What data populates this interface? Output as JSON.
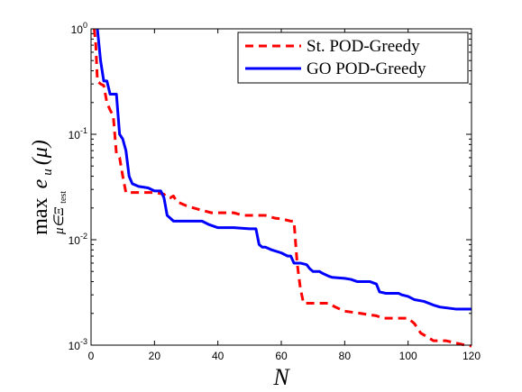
{
  "chart_data": {
    "type": "line",
    "title": "",
    "xlabel": "N",
    "ylabel": {
      "op": "max",
      "subscript": "μ∈Ξ",
      "subscript_tail": "test",
      "expr_main": "e",
      "expr_sub": "u",
      "expr_arg": "(μ)"
    },
    "xlim": [
      0,
      120
    ],
    "ylim": [
      0.001,
      1
    ],
    "yscale": "log",
    "grid": false,
    "legend_position": "top-right",
    "x_ticks": [
      0,
      20,
      40,
      60,
      80,
      100,
      120
    ],
    "x_tick_labels": [
      "0",
      "20",
      "40",
      "60",
      "80",
      "100",
      "120"
    ],
    "y_ticks": [
      0.001,
      0.01,
      0.1,
      1
    ],
    "y_tick_labels": [
      {
        "base": "10",
        "exp": "-3"
      },
      {
        "base": "10",
        "exp": "-2"
      },
      {
        "base": "10",
        "exp": "-1"
      },
      {
        "base": "10",
        "exp": "0"
      }
    ],
    "series": [
      {
        "name": "St. POD-Greedy",
        "color": "#ff0000",
        "style": "dashed",
        "points": [
          [
            1,
            1.0
          ],
          [
            1.5,
            0.7
          ],
          [
            2,
            0.32
          ],
          [
            3,
            0.3
          ],
          [
            4,
            0.29
          ],
          [
            5,
            0.2
          ],
          [
            6,
            0.17
          ],
          [
            7,
            0.15
          ],
          [
            8,
            0.065
          ],
          [
            9,
            0.06
          ],
          [
            10,
            0.04
          ],
          [
            11,
            0.028
          ],
          [
            15,
            0.028
          ],
          [
            20,
            0.028
          ],
          [
            23,
            0.027
          ],
          [
            24,
            0.025
          ],
          [
            25,
            0.025
          ],
          [
            26,
            0.026
          ],
          [
            27,
            0.023
          ],
          [
            30,
            0.021
          ],
          [
            35,
            0.019
          ],
          [
            38,
            0.018
          ],
          [
            40,
            0.018
          ],
          [
            45,
            0.018
          ],
          [
            48,
            0.017
          ],
          [
            55,
            0.017
          ],
          [
            58,
            0.016
          ],
          [
            60,
            0.0158
          ],
          [
            63,
            0.015
          ],
          [
            64,
            0.015
          ],
          [
            65,
            0.006
          ],
          [
            66,
            0.0035
          ],
          [
            67,
            0.0025
          ],
          [
            70,
            0.0025
          ],
          [
            75,
            0.0025
          ],
          [
            77,
            0.0023
          ],
          [
            80,
            0.0021
          ],
          [
            85,
            0.002
          ],
          [
            90,
            0.0019
          ],
          [
            92,
            0.0018
          ],
          [
            100,
            0.0018
          ],
          [
            102,
            0.0016
          ],
          [
            104,
            0.0013
          ],
          [
            106,
            0.0012
          ],
          [
            108,
            0.0011
          ],
          [
            112,
            0.0011
          ],
          [
            115,
            0.00105
          ],
          [
            118,
            0.001
          ],
          [
            120,
            0.00098
          ]
        ]
      },
      {
        "name": "GO POD-Greedy",
        "color": "#0000ff",
        "style": "solid",
        "points": [
          [
            2,
            1.0
          ],
          [
            3,
            0.5
          ],
          [
            4,
            0.32
          ],
          [
            5,
            0.32
          ],
          [
            6,
            0.24
          ],
          [
            7,
            0.24
          ],
          [
            8,
            0.24
          ],
          [
            9,
            0.1
          ],
          [
            10,
            0.09
          ],
          [
            11,
            0.07
          ],
          [
            12,
            0.04
          ],
          [
            13,
            0.034
          ],
          [
            15,
            0.032
          ],
          [
            18,
            0.031
          ],
          [
            20,
            0.029
          ],
          [
            22,
            0.029
          ],
          [
            23,
            0.025
          ],
          [
            24,
            0.017
          ],
          [
            25,
            0.016
          ],
          [
            26,
            0.015
          ],
          [
            30,
            0.015
          ],
          [
            35,
            0.015
          ],
          [
            37,
            0.014
          ],
          [
            40,
            0.013
          ],
          [
            45,
            0.013
          ],
          [
            50,
            0.0127
          ],
          [
            52,
            0.0127
          ],
          [
            53,
            0.009
          ],
          [
            54,
            0.0085
          ],
          [
            55,
            0.0085
          ],
          [
            57,
            0.008
          ],
          [
            60,
            0.0075
          ],
          [
            62,
            0.007
          ],
          [
            63,
            0.007
          ],
          [
            64,
            0.006
          ],
          [
            65,
            0.006
          ],
          [
            66,
            0.006
          ],
          [
            68,
            0.0058
          ],
          [
            69,
            0.0053
          ],
          [
            70,
            0.005
          ],
          [
            72,
            0.005
          ],
          [
            73,
            0.0048
          ],
          [
            75,
            0.0045
          ],
          [
            76,
            0.0044
          ],
          [
            80,
            0.0043
          ],
          [
            82,
            0.0042
          ],
          [
            84,
            0.004
          ],
          [
            88,
            0.004
          ],
          [
            90,
            0.0038
          ],
          [
            91,
            0.0032
          ],
          [
            93,
            0.0031
          ],
          [
            97,
            0.0031
          ],
          [
            98,
            0.003
          ],
          [
            100,
            0.0029
          ],
          [
            102,
            0.0027
          ],
          [
            105,
            0.0026
          ],
          [
            108,
            0.0024
          ],
          [
            110,
            0.0023
          ],
          [
            115,
            0.0022
          ],
          [
            120,
            0.0022
          ]
        ]
      }
    ]
  }
}
